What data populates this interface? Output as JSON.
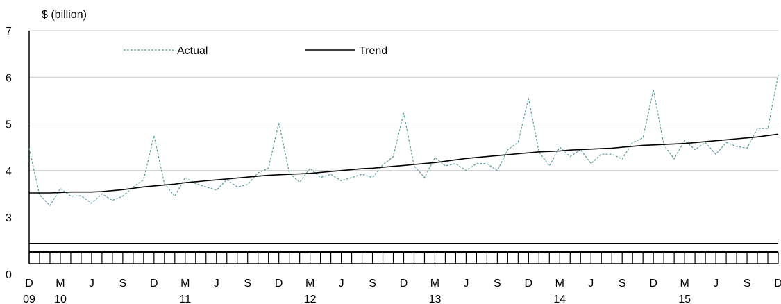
{
  "chart_data": {
    "type": "line",
    "ylabel": "$ (billion)",
    "y_ticks": [
      "0",
      "3",
      "4",
      "5",
      "6",
      "7"
    ],
    "ylim": [
      3,
      7
    ],
    "axis_break": true,
    "grid": "horizontal",
    "legend_placement": "top-left",
    "x_month_labels": [
      "D",
      "M",
      "J",
      "S",
      "D",
      "M",
      "J",
      "S",
      "D",
      "M",
      "J",
      "S",
      "D",
      "M",
      "J",
      "S",
      "D",
      "M",
      "J",
      "S",
      "D",
      "M",
      "J",
      "S",
      "D"
    ],
    "x_year_labels": [
      {
        "label": "09",
        "month_index": 0
      },
      {
        "label": "10",
        "month_index": 3
      },
      {
        "label": "11",
        "month_index": 15
      },
      {
        "label": "12",
        "month_index": 27
      },
      {
        "label": "13",
        "month_index": 39
      },
      {
        "label": "14",
        "month_index": 51
      },
      {
        "label": "15",
        "month_index": 63
      }
    ],
    "x_start": "Dec 2009",
    "x_end": "Dec 2015",
    "series": [
      {
        "name": "Actual",
        "style": "dashed",
        "color": "#5a9a9a",
        "values": [
          4.48,
          3.48,
          3.25,
          3.62,
          3.45,
          3.46,
          3.3,
          3.5,
          3.36,
          3.45,
          3.65,
          3.8,
          4.75,
          3.72,
          3.45,
          3.85,
          3.72,
          3.65,
          3.58,
          3.8,
          3.65,
          3.7,
          3.95,
          4.05,
          5.03,
          3.95,
          3.75,
          4.05,
          3.85,
          3.92,
          3.78,
          3.85,
          3.92,
          3.85,
          4.12,
          4.3,
          5.23,
          4.1,
          3.85,
          4.28,
          4.1,
          4.15,
          4.0,
          4.15,
          4.15,
          4.0,
          4.45,
          4.6,
          5.55,
          4.4,
          4.1,
          4.5,
          4.3,
          4.45,
          4.15,
          4.35,
          4.35,
          4.25,
          4.6,
          4.7,
          5.73,
          4.55,
          4.25,
          4.65,
          4.45,
          4.6,
          4.35,
          4.6,
          4.52,
          4.48,
          4.9,
          4.9,
          6.05
        ]
      },
      {
        "name": "Trend",
        "style": "solid",
        "color": "#000000",
        "values": [
          3.52,
          3.52,
          3.52,
          3.53,
          3.54,
          3.54,
          3.54,
          3.55,
          3.57,
          3.59,
          3.62,
          3.65,
          3.67,
          3.69,
          3.71,
          3.74,
          3.76,
          3.78,
          3.8,
          3.82,
          3.84,
          3.86,
          3.88,
          3.9,
          3.91,
          3.92,
          3.93,
          3.94,
          3.96,
          3.98,
          4.0,
          4.02,
          4.04,
          4.05,
          4.07,
          4.09,
          4.11,
          4.13,
          4.15,
          4.17,
          4.2,
          4.23,
          4.26,
          4.28,
          4.3,
          4.32,
          4.34,
          4.36,
          4.38,
          4.4,
          4.41,
          4.42,
          4.44,
          4.45,
          4.46,
          4.47,
          4.48,
          4.5,
          4.52,
          4.54,
          4.55,
          4.56,
          4.57,
          4.58,
          4.6,
          4.62,
          4.64,
          4.66,
          4.68,
          4.7,
          4.72,
          4.75,
          4.78
        ]
      }
    ]
  }
}
